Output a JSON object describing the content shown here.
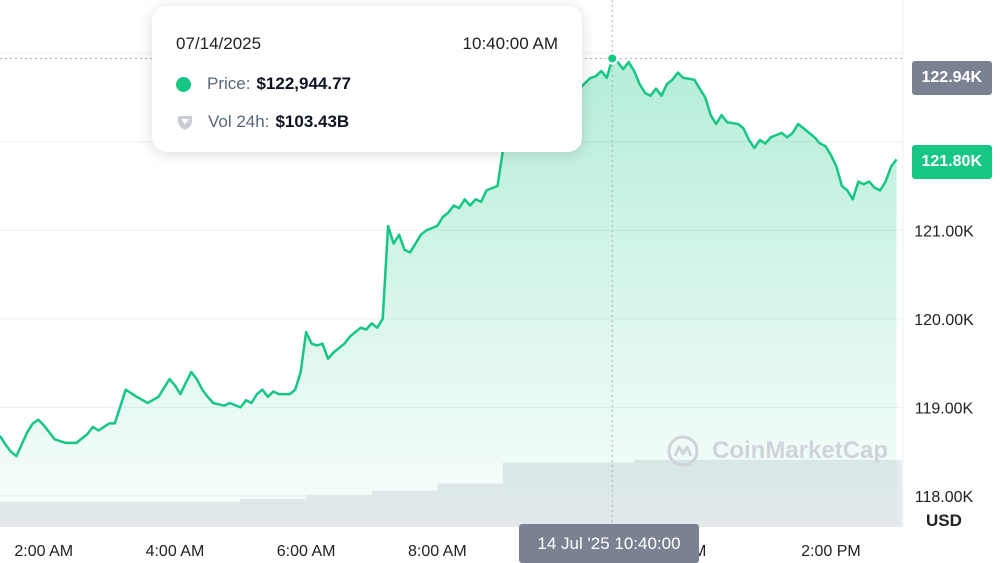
{
  "chart_data": {
    "type": "area",
    "series": [
      {
        "points": [
          [
            "1:20",
            118.68
          ],
          [
            "1:25",
            118.58
          ],
          [
            "1:30",
            118.5
          ],
          [
            "1:35",
            118.45
          ],
          [
            "1:45",
            118.72
          ],
          [
            "1:50",
            118.82
          ],
          [
            "1:55",
            118.86
          ],
          [
            "2:00",
            118.8
          ],
          [
            "2:05",
            118.72
          ],
          [
            "2:10",
            118.64
          ],
          [
            "2:20",
            118.6
          ],
          [
            "2:30",
            118.6
          ],
          [
            "2:35",
            118.65
          ],
          [
            "2:40",
            118.7
          ],
          [
            "2:45",
            118.78
          ],
          [
            "2:50",
            118.74
          ],
          [
            "3:00",
            118.82
          ],
          [
            "3:05",
            118.82
          ],
          [
            "3:15",
            119.2
          ],
          [
            "3:25",
            119.12
          ],
          [
            "3:35",
            119.05
          ],
          [
            "3:45",
            119.12
          ],
          [
            "3:50",
            119.22
          ],
          [
            "3:55",
            119.32
          ],
          [
            "4:00",
            119.25
          ],
          [
            "4:05",
            119.15
          ],
          [
            "4:10",
            119.28
          ],
          [
            "4:15",
            119.4
          ],
          [
            "4:20",
            119.32
          ],
          [
            "4:25",
            119.2
          ],
          [
            "4:30",
            119.12
          ],
          [
            "4:35",
            119.05
          ],
          [
            "4:45",
            119.02
          ],
          [
            "4:50",
            119.05
          ],
          [
            "5:00",
            119.0
          ],
          [
            "5:05",
            119.08
          ],
          [
            "5:10",
            119.05
          ],
          [
            "5:15",
            119.15
          ],
          [
            "5:20",
            119.2
          ],
          [
            "5:25",
            119.12
          ],
          [
            "5:30",
            119.18
          ],
          [
            "5:35",
            119.15
          ],
          [
            "5:45",
            119.15
          ],
          [
            "5:50",
            119.2
          ],
          [
            "5:55",
            119.4
          ],
          [
            "6:00",
            119.85
          ],
          [
            "6:05",
            119.72
          ],
          [
            "6:10",
            119.7
          ],
          [
            "6:15",
            119.72
          ],
          [
            "6:20",
            119.55
          ],
          [
            "6:25",
            119.62
          ],
          [
            "6:35",
            119.72
          ],
          [
            "6:40",
            119.8
          ],
          [
            "6:45",
            119.85
          ],
          [
            "6:50",
            119.9
          ],
          [
            "6:55",
            119.88
          ],
          [
            "7:00",
            119.95
          ],
          [
            "7:05",
            119.9
          ],
          [
            "7:10",
            120.0
          ],
          [
            "7:15",
            121.05
          ],
          [
            "7:20",
            120.85
          ],
          [
            "7:25",
            120.95
          ],
          [
            "7:30",
            120.78
          ],
          [
            "7:35",
            120.75
          ],
          [
            "7:40",
            120.85
          ],
          [
            "7:45",
            120.95
          ],
          [
            "7:50",
            121.0
          ],
          [
            "8:00",
            121.05
          ],
          [
            "8:05",
            121.15
          ],
          [
            "8:10",
            121.2
          ],
          [
            "8:15",
            121.28
          ],
          [
            "8:20",
            121.25
          ],
          [
            "8:25",
            121.35
          ],
          [
            "8:30",
            121.28
          ],
          [
            "8:35",
            121.35
          ],
          [
            "8:40",
            121.32
          ],
          [
            "8:45",
            121.45
          ],
          [
            "8:55",
            121.5
          ],
          [
            "9:00",
            121.9
          ],
          [
            "10:00",
            122.55
          ],
          [
            "10:05",
            122.7
          ],
          [
            "10:10",
            122.6
          ],
          [
            "10:20",
            122.72
          ],
          [
            "10:25",
            122.74
          ],
          [
            "10:30",
            122.8
          ],
          [
            "10:35",
            122.72
          ],
          [
            "10:40",
            122.94
          ],
          [
            "10:45",
            122.9
          ],
          [
            "10:50",
            122.82
          ],
          [
            "10:55",
            122.9
          ],
          [
            "11:00",
            122.8
          ],
          [
            "11:05",
            122.65
          ],
          [
            "11:10",
            122.55
          ],
          [
            "11:15",
            122.52
          ],
          [
            "11:20",
            122.6
          ],
          [
            "11:25",
            122.52
          ],
          [
            "11:30",
            122.65
          ],
          [
            "11:35",
            122.7
          ],
          [
            "11:40",
            122.78
          ],
          [
            "11:45",
            122.72
          ],
          [
            "11:55",
            122.7
          ],
          [
            "12:00",
            122.6
          ],
          [
            "12:05",
            122.5
          ],
          [
            "12:10",
            122.3
          ],
          [
            "12:15",
            122.2
          ],
          [
            "12:20",
            122.3
          ],
          [
            "12:25",
            122.22
          ],
          [
            "12:35",
            122.2
          ],
          [
            "12:40",
            122.15
          ],
          [
            "12:45",
            122.02
          ],
          [
            "12:50",
            121.93
          ],
          [
            "12:55",
            122.02
          ],
          [
            "13:00",
            121.98
          ],
          [
            "13:05",
            122.05
          ],
          [
            "13:15",
            122.1
          ],
          [
            "13:20",
            122.05
          ],
          [
            "13:25",
            122.1
          ],
          [
            "13:30",
            122.2
          ],
          [
            "13:35",
            122.15
          ],
          [
            "13:40",
            122.1
          ],
          [
            "13:45",
            122.05
          ],
          [
            "13:50",
            121.98
          ],
          [
            "13:55",
            121.95
          ],
          [
            "14:00",
            121.85
          ],
          [
            "14:05",
            121.72
          ],
          [
            "14:10",
            121.5
          ],
          [
            "14:15",
            121.45
          ],
          [
            "14:20",
            121.35
          ],
          [
            "14:25",
            121.55
          ],
          [
            "14:30",
            121.52
          ],
          [
            "14:35",
            121.55
          ],
          [
            "14:40",
            121.48
          ],
          [
            "14:45",
            121.45
          ],
          [
            "14:50",
            121.55
          ],
          [
            "14:55",
            121.72
          ],
          [
            "15:00",
            121.8
          ]
        ]
      }
    ],
    "y_ticks": [
      "118.00K",
      "119.00K",
      "120.00K",
      "121.00K"
    ],
    "y_tick_values": [
      118.0,
      119.0,
      120.0,
      121.0
    ],
    "x_ticks": [
      "2:00 AM",
      "4:00 AM",
      "6:00 AM",
      "8:00 AM",
      "PM",
      "2:00 PM"
    ],
    "x_tick_times": [
      "2:00",
      "4:00",
      "6:00",
      "8:00",
      "11:55",
      "14:00"
    ],
    "x_range": [
      "1:20",
      "15:05"
    ],
    "ylim": [
      117.65,
      123.6
    ],
    "current_price_label": "121.80K",
    "current_price_value": 121.8,
    "hover_price_label": "122.94K",
    "hover_price_value": 122.94,
    "hover_time": "10:40",
    "hover_axis_label": "14 Jul '25 10:40:00",
    "currency_label": "USD",
    "line_color": "#16c784",
    "volume_color": "#e6e9ed",
    "volume_levels": [
      {
        "from": "1:20",
        "to": "5:00",
        "level": 0.18
      },
      {
        "from": "5:00",
        "to": "6:00",
        "level": 0.2
      },
      {
        "from": "6:00",
        "to": "7:00",
        "level": 0.23
      },
      {
        "from": "7:00",
        "to": "8:00",
        "level": 0.26
      },
      {
        "from": "8:00",
        "to": "9:00",
        "level": 0.31
      },
      {
        "from": "9:00",
        "to": "11:00",
        "level": 0.46
      },
      {
        "from": "11:00",
        "to": "15:05",
        "level": 0.48
      }
    ],
    "grid": true
  },
  "tooltip": {
    "date": "07/14/2025",
    "time": "10:40:00 AM",
    "price_label": "Price:",
    "price_value": "$122,944.77",
    "vol_label": "Vol 24h:",
    "vol_value": "$103.43B",
    "price_dot_color": "#16c784"
  },
  "watermark": {
    "text": "CoinMarketCap",
    "icon": "coinmarketcap-logo-icon"
  }
}
